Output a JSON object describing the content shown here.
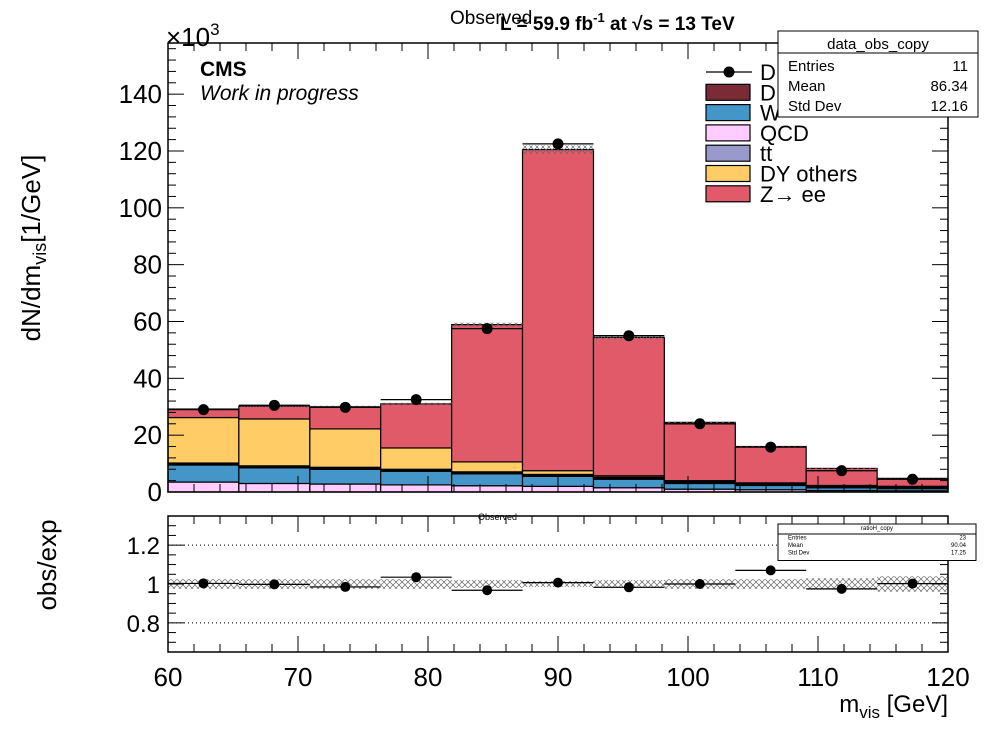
{
  "header": {
    "observed_top": "Observed",
    "lumi_prefix": "L = 59.9 fb",
    "lumi_sup": "-1",
    "lumi_mid": " at  √s = 13 TeV",
    "observed_ratio": "Observed",
    "cms": "CMS",
    "wip": "Work in progress"
  },
  "stats_box": {
    "title": "data_obs_copy",
    "rows": [
      {
        "label": "Entries",
        "value": "11"
      },
      {
        "label": "Mean",
        "value": "86.34"
      },
      {
        "label": "Std Dev",
        "value": "12.16"
      }
    ]
  },
  "ratio_stats_box": {
    "title": "ratioH_copy",
    "rows": [
      {
        "label": "Entries",
        "value": "23"
      },
      {
        "label": "Mean",
        "value": "90.04"
      },
      {
        "label": "Std Dev",
        "value": "17.25"
      }
    ]
  },
  "colors": {
    "Z_ee": "#e05a6a",
    "DY_others": "#ffcc66",
    "tt": "#9999cc",
    "QCD": "#ffccff",
    "W_jets": "#4496c8",
    "D_other": "#7a2b35",
    "data": "#000000"
  },
  "chart_data": [
    {
      "type": "bar",
      "stacked": true,
      "title": "",
      "xlabel": "",
      "ylabel": "dN/dm_vis [1/GeV]",
      "y_multiplier": "×10^3",
      "xlim": [
        60,
        120
      ],
      "ylim": [
        0,
        158
      ],
      "bin_edges": [
        60,
        65.45,
        70.91,
        76.36,
        81.82,
        87.27,
        92.73,
        98.18,
        103.64,
        109.09,
        114.55,
        120
      ],
      "y_ticks": [
        0,
        20,
        40,
        60,
        80,
        100,
        120,
        140
      ],
      "series": [
        {
          "name": "QCD",
          "color_key": "QCD",
          "values": [
            3.5,
            3.0,
            2.8,
            2.5,
            2.2,
            2.0,
            1.5,
            1.0,
            0.8,
            0.5,
            0.4
          ]
        },
        {
          "name": "W",
          "color_key": "W_jets",
          "values": [
            6.0,
            5.5,
            5.2,
            4.8,
            4.2,
            3.5,
            3.0,
            2.0,
            1.5,
            1.0,
            0.8
          ]
        },
        {
          "name": "tt",
          "color_key": "tt",
          "values": [
            0.3,
            0.3,
            0.3,
            0.3,
            0.3,
            0.3,
            0.3,
            0.3,
            0.3,
            0.3,
            0.3
          ]
        },
        {
          "name": "D",
          "color_key": "D_other",
          "values": [
            0.4,
            0.4,
            0.4,
            0.4,
            0.4,
            0.4,
            0.4,
            0.4,
            0.4,
            0.4,
            0.4
          ]
        },
        {
          "name": "DY others",
          "color_key": "DY_others",
          "values": [
            16.0,
            16.5,
            13.5,
            7.5,
            3.5,
            1.3,
            0.5,
            0.3,
            0.2,
            0.1,
            0.1
          ]
        },
        {
          "name": "Z→ ee",
          "color_key": "Z_ee",
          "values": [
            3.0,
            4.5,
            7.8,
            15.5,
            48.3,
            113.0,
            48.7,
            20.5,
            12.8,
            6.0,
            2.8
          ]
        }
      ],
      "data": {
        "name": "D",
        "x": [
          62.73,
          68.18,
          73.64,
          79.09,
          84.55,
          90.0,
          95.45,
          100.91,
          106.36,
          111.82,
          117.27
        ],
        "y": [
          29.0,
          30.5,
          29.8,
          32.5,
          57.5,
          122.5,
          55.0,
          24.0,
          15.8,
          7.5,
          4.5
        ]
      },
      "legend": {
        "placement": "top-right",
        "entries": [
          {
            "label": "D",
            "kind": "marker"
          },
          {
            "label": "D",
            "color_key": "D_other"
          },
          {
            "label": "W",
            "color_key": "W_jets"
          },
          {
            "label": "QCD",
            "color_key": "QCD"
          },
          {
            "label": "tt",
            "color_key": "tt"
          },
          {
            "label": "DY others",
            "color_key": "DY_others"
          },
          {
            "label": "Z→ ee",
            "color_key": "Z_ee"
          }
        ]
      }
    },
    {
      "type": "scatter",
      "title": "",
      "xlabel": "m_vis [GeV]",
      "ylabel": "obs/exp",
      "xlim": [
        60,
        120
      ],
      "ylim": [
        0.65,
        1.35
      ],
      "x_ticks": [
        60,
        70,
        80,
        90,
        100,
        110,
        120
      ],
      "y_ticks": [
        0.8,
        1,
        1.2
      ],
      "y_tick_labels": [
        "0.8",
        "1",
        "1.2"
      ],
      "reference_lines": [
        0.8,
        1.2
      ],
      "x": [
        62.73,
        68.18,
        73.64,
        79.09,
        84.55,
        90.0,
        95.45,
        100.91,
        106.36,
        111.82,
        117.27
      ],
      "y": [
        1.003,
        0.998,
        0.985,
        1.035,
        0.968,
        1.007,
        0.983,
        1.0,
        1.07,
        0.975,
        1.002
      ],
      "unc_band": [
        0.025,
        0.025,
        0.025,
        0.025,
        0.02,
        0.015,
        0.02,
        0.025,
        0.025,
        0.03,
        0.04
      ]
    }
  ]
}
